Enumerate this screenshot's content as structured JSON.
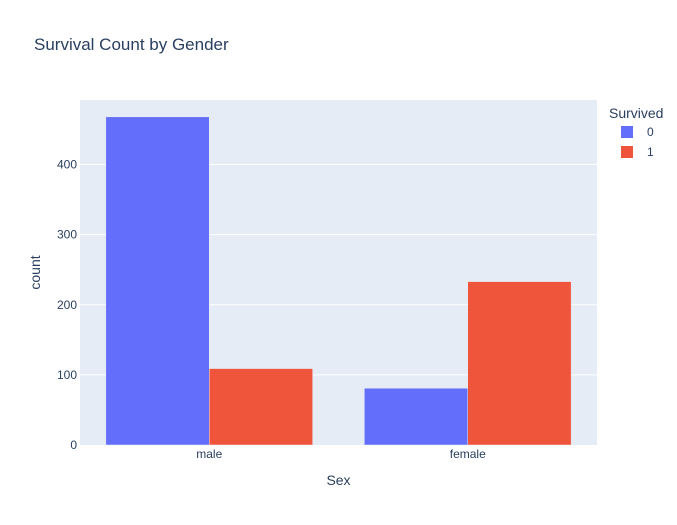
{
  "chart_data": {
    "type": "bar",
    "title": "Survival Count by Gender",
    "xlabel": "Sex",
    "ylabel": "count",
    "categories": [
      "male",
      "female"
    ],
    "series": [
      {
        "name": "0",
        "values": [
          468,
          81
        ],
        "color": "#636efa"
      },
      {
        "name": "1",
        "values": [
          109,
          233
        ],
        "color": "#ef553b"
      }
    ],
    "ylim": [
      0,
      492
    ],
    "yticks": [
      0,
      100,
      200,
      300,
      400
    ],
    "legend_title": "Survived",
    "legend_position": "top-right",
    "grid": true,
    "plot_background": "#e5ecf6"
  }
}
